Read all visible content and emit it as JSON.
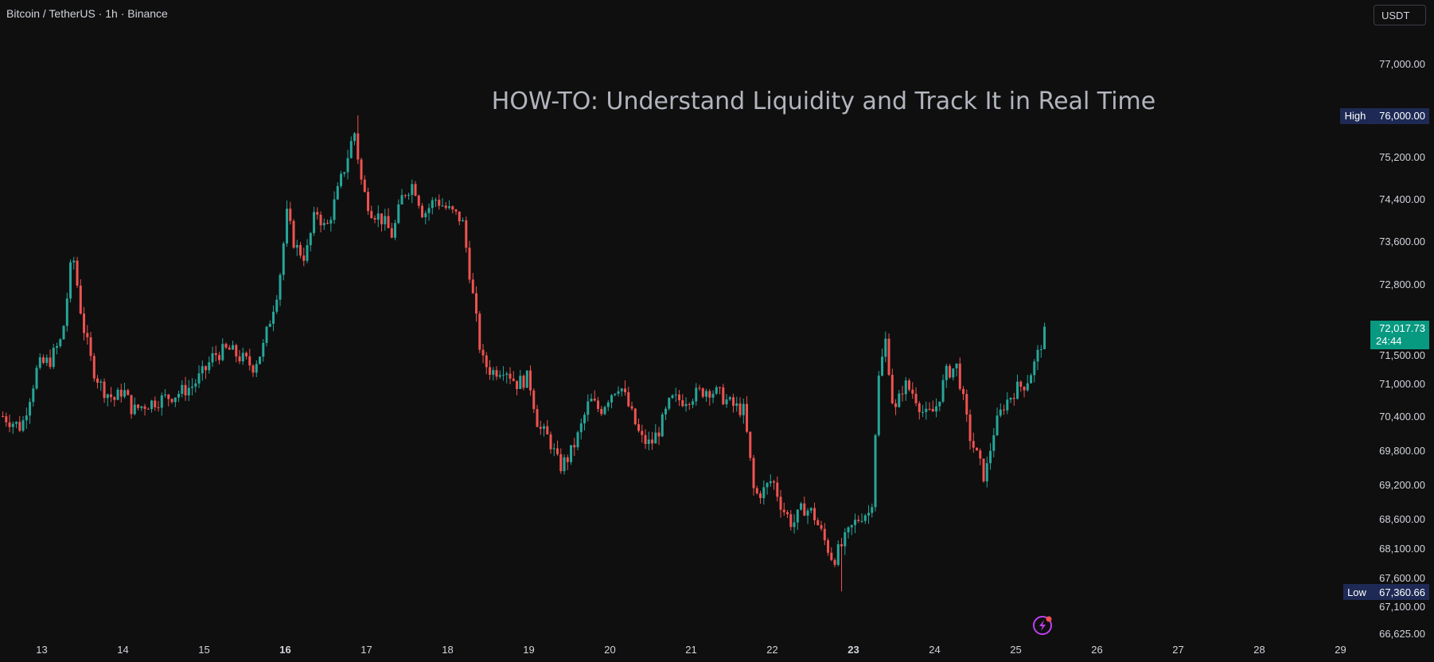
{
  "header": {
    "symbol": "Bitcoin / TetherUS · 1h · Binance",
    "currency": "USDT"
  },
  "headline": "HOW-TO: Understand Liquidity and Track It in Real Time",
  "colors": {
    "background": "#0f0f0f",
    "up": "#26a69a",
    "down": "#ef5350",
    "axis_text": "#d1d4dc",
    "badge": "#1e2a55",
    "last_price_badge": "#089981",
    "icon": "#e040fb"
  },
  "price_labels": {
    "high_label": "High",
    "high_value": "76,000.00",
    "low_label": "Low",
    "low_value": "67,360.66",
    "last_value": "72,017.73",
    "countdown": "24:44"
  },
  "icons": {
    "lightning": "lightning-icon"
  },
  "chart_data": {
    "type": "candlestick",
    "interval": "1h",
    "y_scale": "log",
    "ylim": [
      66625,
      77500
    ],
    "grid": false,
    "y_ticks": [
      {
        "value": 77000,
        "label": "77,000.00"
      },
      {
        "value": 75200,
        "label": "75,200.00"
      },
      {
        "value": 74400,
        "label": "74,400.00"
      },
      {
        "value": 73600,
        "label": "73,600.00"
      },
      {
        "value": 72800,
        "label": "72,800.00"
      },
      {
        "value": 71500,
        "label": "71,500.00"
      },
      {
        "value": 71000,
        "label": "71,000.00"
      },
      {
        "value": 70400,
        "label": "70,400.00"
      },
      {
        "value": 69800,
        "label": "69,800.00"
      },
      {
        "value": 69200,
        "label": "69,200.00"
      },
      {
        "value": 68600,
        "label": "68,600.00"
      },
      {
        "value": 68100,
        "label": "68,100.00"
      },
      {
        "value": 67600,
        "label": "67,600.00"
      },
      {
        "value": 67100,
        "label": "67,100.00"
      },
      {
        "value": 66625,
        "label": "66,625.00"
      }
    ],
    "x_ticks": [
      {
        "day": 13,
        "label": "13",
        "bold": false
      },
      {
        "day": 14,
        "label": "14",
        "bold": false
      },
      {
        "day": 15,
        "label": "15",
        "bold": false
      },
      {
        "day": 16,
        "label": "16",
        "bold": true
      },
      {
        "day": 17,
        "label": "17",
        "bold": false
      },
      {
        "day": 18,
        "label": "18",
        "bold": false
      },
      {
        "day": 19,
        "label": "19",
        "bold": false
      },
      {
        "day": 20,
        "label": "20",
        "bold": false
      },
      {
        "day": 21,
        "label": "21",
        "bold": false
      },
      {
        "day": 22,
        "label": "22",
        "bold": false
      },
      {
        "day": 23,
        "label": "23",
        "bold": true
      },
      {
        "day": 24,
        "label": "24",
        "bold": false
      },
      {
        "day": 25,
        "label": "25",
        "bold": false
      },
      {
        "day": 26,
        "label": "26",
        "bold": false
      },
      {
        "day": 27,
        "label": "27",
        "bold": false
      },
      {
        "day": 28,
        "label": "28",
        "bold": false
      },
      {
        "day": 29,
        "label": "29",
        "bold": false
      }
    ],
    "x_start_day": 12.5,
    "x_end_day": 29.0,
    "last_bar_day": 25.37,
    "high": 76000,
    "low": 67360.66,
    "last": 72017.73,
    "close_path": [
      [
        12.52,
        70400
      ],
      [
        12.75,
        70200
      ],
      [
        12.95,
        71300
      ],
      [
        13.1,
        71400
      ],
      [
        13.25,
        71800
      ],
      [
        13.38,
        73400
      ],
      [
        13.5,
        72100
      ],
      [
        13.62,
        71300
      ],
      [
        13.75,
        70900
      ],
      [
        13.9,
        70700
      ],
      [
        14.0,
        70900
      ],
      [
        14.12,
        70500
      ],
      [
        14.25,
        70600
      ],
      [
        14.45,
        70700
      ],
      [
        14.65,
        70800
      ],
      [
        14.85,
        70950
      ],
      [
        15.0,
        71200
      ],
      [
        15.12,
        71500
      ],
      [
        15.3,
        71600
      ],
      [
        15.45,
        71450
      ],
      [
        15.6,
        71300
      ],
      [
        15.72,
        71600
      ],
      [
        15.82,
        72200
      ],
      [
        15.92,
        72800
      ],
      [
        16.02,
        74100
      ],
      [
        16.12,
        73500
      ],
      [
        16.25,
        73300
      ],
      [
        16.38,
        74200
      ],
      [
        16.5,
        73800
      ],
      [
        16.62,
        74400
      ],
      [
        16.75,
        75100
      ],
      [
        16.85,
        75700
      ],
      [
        16.95,
        74600
      ],
      [
        17.05,
        74200
      ],
      [
        17.2,
        74000
      ],
      [
        17.32,
        73700
      ],
      [
        17.45,
        74500
      ],
      [
        17.58,
        74700
      ],
      [
        17.7,
        74100
      ],
      [
        17.85,
        74400
      ],
      [
        18.0,
        74200
      ],
      [
        18.18,
        74000
      ],
      [
        18.3,
        72700
      ],
      [
        18.42,
        71400
      ],
      [
        18.55,
        71200
      ],
      [
        18.7,
        71300
      ],
      [
        18.85,
        71000
      ],
      [
        19.0,
        71100
      ],
      [
        19.12,
        70200
      ],
      [
        19.25,
        70000
      ],
      [
        19.38,
        69500
      ],
      [
        19.5,
        69700
      ],
      [
        19.62,
        70100
      ],
      [
        19.75,
        70700
      ],
      [
        19.88,
        70500
      ],
      [
        20.0,
        70800
      ],
      [
        20.12,
        71000
      ],
      [
        20.25,
        70500
      ],
      [
        20.38,
        70000
      ],
      [
        20.5,
        69900
      ],
      [
        20.62,
        70200
      ],
      [
        20.75,
        70700
      ],
      [
        20.9,
        70700
      ],
      [
        21.05,
        70800
      ],
      [
        21.2,
        70900
      ],
      [
        21.35,
        70800
      ],
      [
        21.5,
        70600
      ],
      [
        21.65,
        70500
      ],
      [
        21.78,
        69000
      ],
      [
        21.9,
        69100
      ],
      [
        22.0,
        69300
      ],
      [
        22.12,
        68800
      ],
      [
        22.25,
        68500
      ],
      [
        22.38,
        68800
      ],
      [
        22.5,
        68700
      ],
      [
        22.62,
        68300
      ],
      [
        22.75,
        67900
      ],
      [
        22.88,
        68200
      ],
      [
        23.0,
        68500
      ],
      [
        23.12,
        68700
      ],
      [
        23.22,
        68700
      ],
      [
        23.3,
        71000
      ],
      [
        23.4,
        71800
      ],
      [
        23.5,
        70400
      ],
      [
        23.62,
        71000
      ],
      [
        23.75,
        70800
      ],
      [
        23.88,
        70400
      ],
      [
        24.0,
        70500
      ],
      [
        24.15,
        71200
      ],
      [
        24.28,
        71300
      ],
      [
        24.42,
        70100
      ],
      [
        24.52,
        69700
      ],
      [
        24.62,
        69300
      ],
      [
        24.72,
        70100
      ],
      [
        24.85,
        70600
      ],
      [
        25.0,
        70900
      ],
      [
        25.12,
        71000
      ],
      [
        25.25,
        71400
      ],
      [
        25.37,
        72017.73
      ]
    ]
  }
}
